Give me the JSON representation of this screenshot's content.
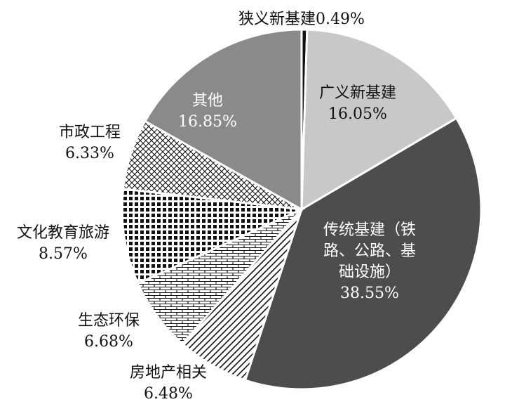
{
  "chart_data": {
    "type": "pie",
    "slices": [
      {
        "name": "狭义新基建",
        "value": 0.49,
        "label": "0.49%",
        "fill": "#111111"
      },
      {
        "name": "广义新基建",
        "value": 16.05,
        "label": "16.05%",
        "fill": "#c8c8c8"
      },
      {
        "name": "传统基建（铁路、公路、基础设施）",
        "value": 38.55,
        "label": "38.55%",
        "fill": "#4d4d4d"
      },
      {
        "name": "房地产相关",
        "value": 6.48,
        "label": "6.48%",
        "fill": "pattern:diagonal"
      },
      {
        "name": "生态环保",
        "value": 6.68,
        "label": "6.68%",
        "fill": "pattern:brick"
      },
      {
        "name": "文化教育旅游",
        "value": 8.57,
        "label": "8.57%",
        "fill": "pattern:checker"
      },
      {
        "name": "市政工程",
        "value": 6.33,
        "label": "6.33%",
        "fill": "pattern:crosshatch"
      },
      {
        "name": "其他",
        "value": 16.85,
        "label": "16.85%",
        "fill": "#8a8a8a"
      }
    ],
    "label_lines": [
      [
        "狭义新基建0.49%"
      ],
      [
        "广义新基建",
        "16.05%"
      ],
      [
        "传统基建（铁",
        "路、公路、基",
        "础设施）",
        "38.55%"
      ],
      [
        "房地产相关",
        "6.48%"
      ],
      [
        "生态环保",
        "6.68%"
      ],
      [
        "文化教育旅游",
        "8.57%"
      ],
      [
        "市政工程",
        "6.33%"
      ],
      [
        "其他",
        "16.85%"
      ]
    ]
  }
}
